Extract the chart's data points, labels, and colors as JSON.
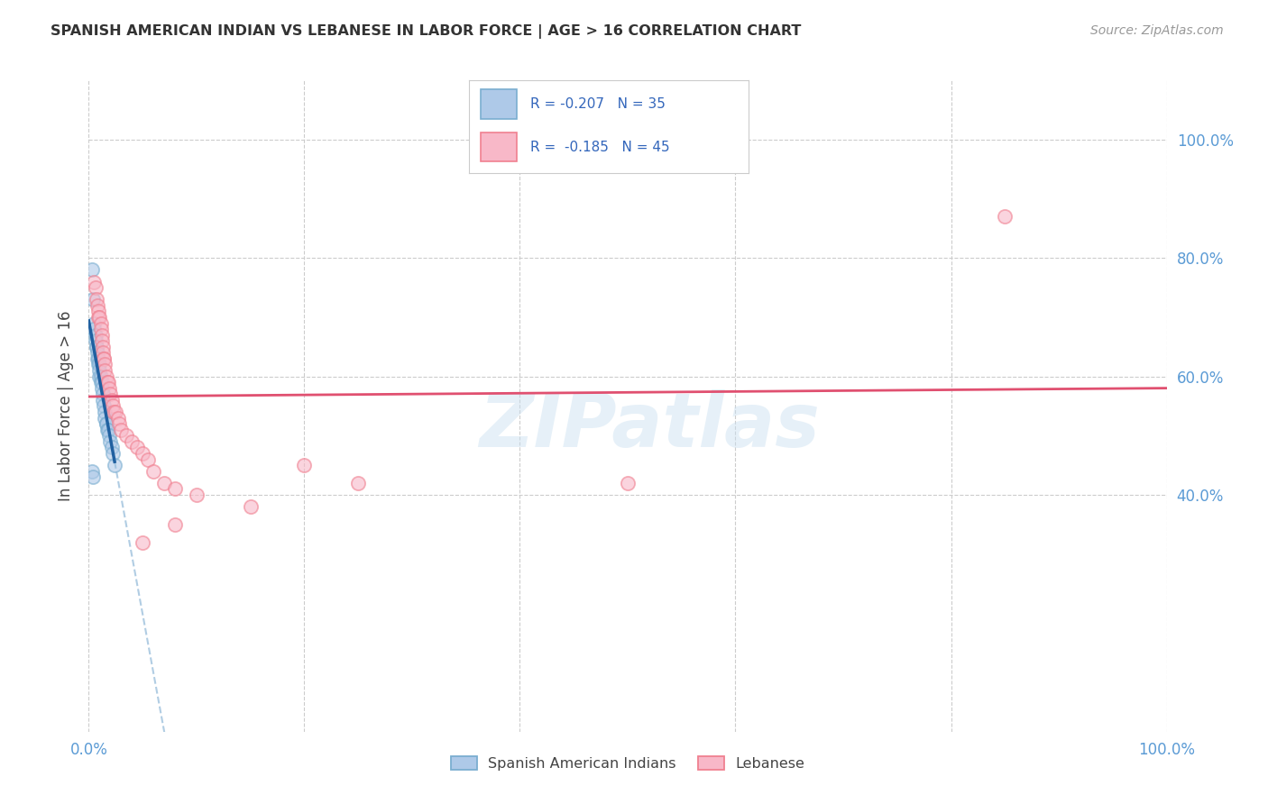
{
  "title": "SPANISH AMERICAN INDIAN VS LEBANESE IN LABOR FORCE | AGE > 16 CORRELATION CHART",
  "source": "Source: ZipAtlas.com",
  "ylabel": "In Labor Force | Age > 16",
  "xlim": [
    0,
    100
  ],
  "ylim": [
    0,
    110
  ],
  "watermark_text": "ZIPatlas",
  "legend_label1": "Spanish American Indians",
  "legend_label2": "Lebanese",
  "R1": -0.207,
  "N1": 35,
  "R2": -0.185,
  "N2": 45,
  "blue_face": "#aec9e8",
  "blue_edge": "#7aaed0",
  "pink_face": "#f8b8c8",
  "pink_edge": "#f08090",
  "blue_line_color": "#2060a0",
  "pink_line_color": "#e05070",
  "blue_dash_color": "#90b8d8",
  "tick_color": "#5b9bd5",
  "grid_color": "#cccccc",
  "scatter_size": 120,
  "scatter_alpha": 0.6,
  "blue_x": [
    0.3,
    0.4,
    0.5,
    0.5,
    0.6,
    0.6,
    0.7,
    0.7,
    0.8,
    0.8,
    0.9,
    0.9,
    1.0,
    1.0,
    1.0,
    1.1,
    1.1,
    1.2,
    1.2,
    1.3,
    1.3,
    1.4,
    1.5,
    1.5,
    1.6,
    1.6,
    1.7,
    1.8,
    1.9,
    2.0,
    2.1,
    2.2,
    2.4,
    0.3,
    0.4
  ],
  "blue_y": [
    78,
    73,
    69,
    68,
    67,
    66,
    65,
    65,
    64,
    63,
    63,
    62,
    62,
    61,
    60,
    60,
    59,
    59,
    58,
    57,
    56,
    55,
    54,
    53,
    52,
    52,
    51,
    51,
    50,
    49,
    48,
    47,
    45,
    44,
    43
  ],
  "pink_x": [
    0.5,
    0.6,
    0.7,
    0.8,
    0.9,
    0.9,
    1.0,
    1.1,
    1.1,
    1.2,
    1.2,
    1.3,
    1.3,
    1.4,
    1.4,
    1.5,
    1.5,
    1.6,
    1.7,
    1.8,
    1.9,
    2.0,
    2.1,
    2.2,
    2.3,
    2.5,
    2.7,
    2.8,
    3.0,
    3.5,
    4.0,
    4.5,
    5.0,
    5.5,
    6.0,
    7.0,
    8.0,
    10.0,
    15.0,
    20.0,
    25.0,
    50.0,
    85.0,
    8.0,
    5.0
  ],
  "pink_y": [
    76,
    75,
    73,
    72,
    71,
    70,
    70,
    69,
    68,
    67,
    66,
    65,
    64,
    63,
    63,
    62,
    61,
    60,
    59,
    59,
    58,
    57,
    56,
    55,
    54,
    54,
    53,
    52,
    51,
    50,
    49,
    48,
    47,
    46,
    44,
    42,
    41,
    40,
    38,
    45,
    42,
    42,
    87,
    35,
    32
  ],
  "blue_line_x_start": 0.0,
  "blue_line_x_end": 2.4,
  "blue_dash_x_end": 55.0,
  "pink_line_x_start": 0.0,
  "pink_line_x_end": 100.0
}
